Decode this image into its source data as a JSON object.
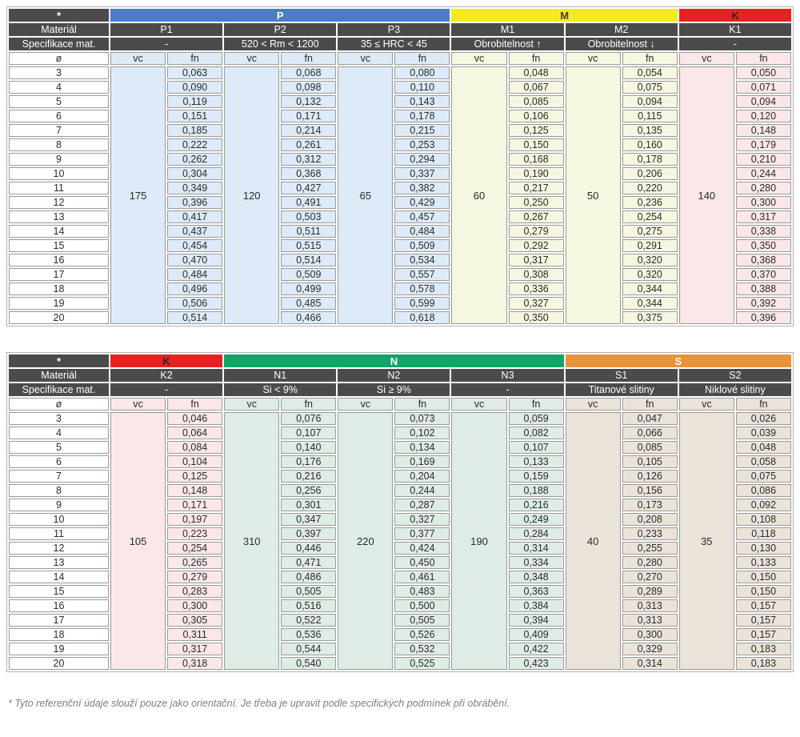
{
  "page": {
    "background": "#ffffff"
  },
  "labels": {
    "corner": "*",
    "material_row": "Materiál",
    "spec_row": "Specifikace mat.",
    "diameter_symbol": "ø",
    "vc": "vc",
    "fn": "fn"
  },
  "colors": {
    "header_dark": "#4b4b4b",
    "header_text": "#ffffff",
    "cell_border": "#9a9a9a",
    "group_P": "#4a7dc9",
    "group_M": "#f2ec1e",
    "group_K": "#e52222",
    "group_N": "#14a269",
    "group_S": "#e8923a",
    "tint_P": "#ddeaf7",
    "tint_M": "#f6f7e1",
    "tint_K": "#fbe7e7",
    "tint_N": "#dfece5",
    "tint_S": "#ebe3da"
  },
  "diameters": [
    "3",
    "4",
    "5",
    "6",
    "7",
    "8",
    "9",
    "10",
    "11",
    "12",
    "13",
    "14",
    "15",
    "16",
    "17",
    "18",
    "19",
    "20"
  ],
  "tables": [
    {
      "name": "table-1",
      "corner_label": "*",
      "groups": [
        {
          "id": "P",
          "label": "P",
          "band_color": "#4a7dc9",
          "band_text": "#ffffff",
          "tint": "#ddeaf7",
          "columns": [
            {
              "id": "P1",
              "label": "P1",
              "spec": "-",
              "vc": "175",
              "fn": [
                "0,063",
                "0,090",
                "0,119",
                "0,151",
                "0,185",
                "0,222",
                "0,262",
                "0,304",
                "0,349",
                "0,396",
                "0,417",
                "0,437",
                "0,454",
                "0,470",
                "0,484",
                "0,496",
                "0,506",
                "0,514"
              ]
            },
            {
              "id": "P2",
              "label": "P2",
              "spec": "520 < Rm < 1200",
              "vc": "120",
              "fn": [
                "0,068",
                "0,098",
                "0,132",
                "0,171",
                "0,214",
                "0,261",
                "0,312",
                "0,368",
                "0,427",
                "0,491",
                "0,503",
                "0,511",
                "0,515",
                "0,514",
                "0,509",
                "0,499",
                "0,485",
                "0,466"
              ]
            },
            {
              "id": "P3",
              "label": "P3",
              "spec": "35 ≤ HRC < 45",
              "vc": "65",
              "fn": [
                "0,080",
                "0,110",
                "0,143",
                "0,178",
                "0,215",
                "0,253",
                "0,294",
                "0,337",
                "0,382",
                "0,429",
                "0,457",
                "0,484",
                "0,509",
                "0,534",
                "0,557",
                "0,578",
                "0,599",
                "0,618"
              ]
            }
          ]
        },
        {
          "id": "M",
          "label": "M",
          "band_color": "#f2ec1e",
          "band_text": "#3d3d3d",
          "tint": "#f6f7e1",
          "columns": [
            {
              "id": "M1",
              "label": "M1",
              "spec": "Obrobitelnost ↑",
              "vc": "60",
              "fn": [
                "0,048",
                "0,067",
                "0,085",
                "0,106",
                "0,125",
                "0,150",
                "0,168",
                "0,190",
                "0,217",
                "0,250",
                "0,267",
                "0,279",
                "0,292",
                "0,317",
                "0,308",
                "0,336",
                "0,327",
                "0,350"
              ]
            },
            {
              "id": "M2",
              "label": "M2",
              "spec": "Obrobitelnost ↓",
              "vc": "50",
              "fn": [
                "0,054",
                "0,075",
                "0,094",
                "0,115",
                "0,135",
                "0,160",
                "0,178",
                "0,206",
                "0,220",
                "0,236",
                "0,254",
                "0,275",
                "0,291",
                "0,320",
                "0,320",
                "0,344",
                "0,344",
                "0,375"
              ]
            }
          ]
        },
        {
          "id": "K",
          "label": "K",
          "band_color": "#e52222",
          "band_text": "#3d1f1f",
          "tint": "#fbe7e7",
          "columns": [
            {
              "id": "K1",
              "label": "K1",
              "spec": "-",
              "vc": "140",
              "fn": [
                "0,050",
                "0,071",
                "0,094",
                "0,120",
                "0,148",
                "0,179",
                "0,210",
                "0,244",
                "0,280",
                "0,300",
                "0,317",
                "0,338",
                "0,350",
                "0,368",
                "0,370",
                "0,388",
                "0,392",
                "0,396"
              ]
            }
          ]
        }
      ]
    },
    {
      "name": "table-2",
      "corner_label": "*",
      "groups": [
        {
          "id": "K",
          "label": "K",
          "band_color": "#e52222",
          "band_text": "#3d1f1f",
          "tint": "#fbe7e7",
          "columns": [
            {
              "id": "K2",
              "label": "K2",
              "spec": "-",
              "vc": "105",
              "fn": [
                "0,046",
                "0,064",
                "0,084",
                "0,104",
                "0,125",
                "0,148",
                "0,171",
                "0,197",
                "0,223",
                "0,254",
                "0,265",
                "0,279",
                "0,283",
                "0,300",
                "0,305",
                "0,311",
                "0,317",
                "0,318"
              ]
            }
          ]
        },
        {
          "id": "N",
          "label": "N",
          "band_color": "#14a269",
          "band_text": "#ffffff",
          "tint": "#dfece5",
          "columns": [
            {
              "id": "N1",
              "label": "N1",
              "spec": "Si < 9%",
              "vc": "310",
              "fn": [
                "0,076",
                "0,107",
                "0,140",
                "0,176",
                "0,216",
                "0,256",
                "0,301",
                "0,347",
                "0,397",
                "0,446",
                "0,471",
                "0,486",
                "0,505",
                "0,516",
                "0,522",
                "0,536",
                "0,544",
                "0,540"
              ]
            },
            {
              "id": "N2",
              "label": "N2",
              "spec": "Si ≥ 9%",
              "vc": "220",
              "fn": [
                "0,073",
                "0,102",
                "0,134",
                "0,169",
                "0,204",
                "0,244",
                "0,287",
                "0,327",
                "0,377",
                "0,424",
                "0,450",
                "0,461",
                "0,483",
                "0,500",
                "0,505",
                "0,526",
                "0,532",
                "0,525"
              ]
            },
            {
              "id": "N3",
              "label": "N3",
              "spec": "-",
              "vc": "190",
              "fn": [
                "0,059",
                "0,082",
                "0,107",
                "0,133",
                "0,159",
                "0,188",
                "0,216",
                "0,249",
                "0,284",
                "0,314",
                "0,334",
                "0,348",
                "0,363",
                "0,384",
                "0,394",
                "0,409",
                "0,422",
                "0,423"
              ]
            }
          ]
        },
        {
          "id": "S",
          "label": "S",
          "band_color": "#e8923a",
          "band_text": "#ffffff",
          "tint": "#ebe3da",
          "columns": [
            {
              "id": "S1",
              "label": "S1",
              "spec": "Titanové slitiny",
              "vc": "40",
              "fn": [
                "0,047",
                "0,066",
                "0,085",
                "0,105",
                "0,126",
                "0,156",
                "0,173",
                "0,208",
                "0,233",
                "0,255",
                "0,280",
                "0,270",
                "0,289",
                "0,313",
                "0,313",
                "0,300",
                "0,329",
                "0,314"
              ]
            },
            {
              "id": "S2",
              "label": "S2",
              "spec": "Niklové slitiny",
              "vc": "35",
              "fn": [
                "0,026",
                "0,039",
                "0,048",
                "0,058",
                "0,075",
                "0,086",
                "0,092",
                "0,108",
                "0,118",
                "0,130",
                "0,133",
                "0,150",
                "0,150",
                "0,157",
                "0,157",
                "0,157",
                "0,183",
                "0,183"
              ]
            }
          ]
        }
      ]
    }
  ],
  "footnote": {
    "text": "* Tyto referenční údaje slouží pouze jako orientační. Je třeba je upravit podle specifických podmínek při obrábění."
  }
}
